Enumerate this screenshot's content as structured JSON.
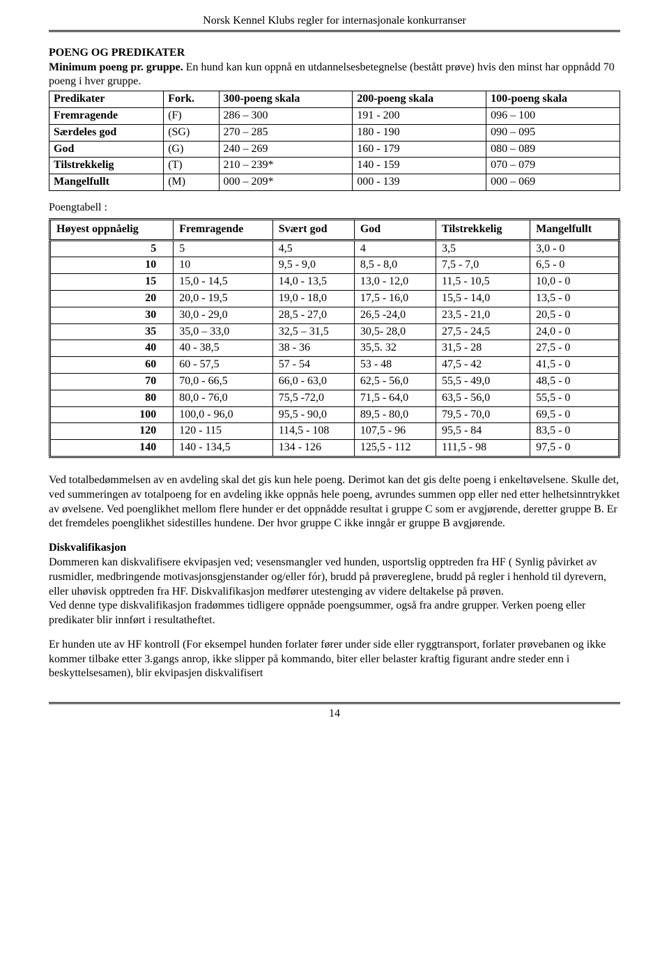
{
  "header": "Norsk Kennel Klubs regler for internasjonale konkurranser",
  "h1": "POENG OG PREDIKATER",
  "minline1": "Minimum poeng pr. gruppe.",
  "minline2": " En hund kan kun oppnå en utdannelsesbetegnelse (bestått prøve) hvis den minst har oppnådd 70 poeng i hver gruppe.",
  "tbl1": {
    "header": [
      "Predikater",
      "Fork.",
      "300-poeng skala",
      "200-poeng skala",
      "100-poeng skala"
    ],
    "rows": [
      [
        "Fremragende",
        "(F)",
        "286 – 300",
        "191 - 200",
        "096 – 100"
      ],
      [
        "Særdeles god",
        "(SG)",
        "270 – 285",
        "180 - 190",
        "090 – 095"
      ],
      [
        "God",
        "(G)",
        "240 – 269",
        "160 - 179",
        "080 – 089"
      ],
      [
        "Tilstrekkelig",
        "(T)",
        "210 – 239*",
        "140 - 159",
        "070 – 079"
      ],
      [
        "Mangelfullt",
        "(M)",
        "000 – 209*",
        "000 - 139",
        "000 – 069"
      ]
    ]
  },
  "poengtabell_label": "Poengtabell :",
  "tbl2": {
    "header": [
      "Høyest oppnåelig",
      "Fremragende",
      "Svært god",
      "God",
      "Tilstrekkelig",
      "Mangelfullt"
    ],
    "rows": [
      [
        "5",
        "5",
        "4,5",
        "4",
        "3,5",
        "3,0 - 0"
      ],
      [
        "10",
        "10",
        "9,5 -  9,0",
        "8,5 -  8,0",
        "7,5 -  7,0",
        "6,5 - 0"
      ],
      [
        "15",
        "15,0 - 14,5",
        "14,0 - 13,5",
        "13,0 - 12,0",
        "11,5 - 10,5",
        "10,0 - 0"
      ],
      [
        "20",
        "20,0 - 19,5",
        "19,0 - 18,0",
        "17,5 - 16,0",
        "15,5 - 14,0",
        "13,5 - 0"
      ],
      [
        "30",
        "30,0 - 29,0",
        "28,5 - 27,0",
        "26,5 -24,0",
        "23,5 - 21,0",
        "20,5 - 0"
      ],
      [
        "35",
        "35,0 – 33,0",
        "32,5 – 31,5",
        "30,5- 28,0",
        "27,5 - 24,5",
        "24,0 - 0"
      ],
      [
        "40",
        "40 - 38,5",
        "38 - 36",
        "35,5. 32",
        "31,5 - 28",
        "27,5 - 0"
      ],
      [
        "60",
        "60 - 57,5",
        "57 - 54",
        "53 - 48",
        "47,5 - 42",
        "41,5 - 0"
      ],
      [
        "70",
        "70,0 - 66,5",
        "66,0 - 63,0",
        "62,5 - 56,0",
        "55,5 - 49,0",
        "48,5 - 0"
      ],
      [
        "80",
        "80,0 - 76,0",
        "75,5 -72,0",
        "71,5 - 64,0",
        "63,5 - 56,0",
        "55,5 - 0"
      ],
      [
        "100",
        "100,0 - 96,0",
        "95,5 - 90,0",
        "89,5 - 80,0",
        "79,5 - 70,0",
        "69,5 - 0"
      ],
      [
        "120",
        "120 - 115",
        "114,5 - 108",
        "107,5 - 96",
        "95,5 - 84",
        "83,5 - 0"
      ],
      [
        "140",
        "140 - 134,5",
        "134 - 126",
        "125,5 - 112",
        "111,5 - 98",
        "97,5 - 0"
      ]
    ]
  },
  "para1": "Ved totalbedømmelsen av en avdeling skal det gis kun hele poeng. Derimot kan det gis delte poeng i enkeltøvelsene. Skulle det, ved summeringen av totalpoeng for en avdeling ikke oppnås hele poeng, avrundes summen opp eller ned etter helhetsinntrykket av øvelsene. Ved poenglikhet mellom flere hunder er det oppnådde resultat i gruppe C som er avgjørende, deretter gruppe B. Er det fremdeles poenglikhet sidestilles hundene. Der hvor gruppe C ikke inngår er gruppe B avgjørende.",
  "disk_title": "Diskvalifikasjon",
  "para2": "Dommeren kan diskvalifisere ekvipasjen ved; vesensmangler ved hunden, usportslig opptreden fra HF ( Synlig påvirket av rusmidler, medbringende motivasjonsgjenstander og/eller fór), brudd på prøvereglene, brudd på regler i henhold til dyrevern, eller uhøvisk opptreden fra HF. Diskvalifikasjon medfører utestenging av videre deltakelse på prøven.",
  "para3": "Ved denne type diskvalifikasjon fradømmes tidligere oppnåde poengsummer, også fra andre grupper. Verken poeng eller predikater blir innført i resultatheftet.",
  "para4": "Er hunden ute av HF kontroll (For eksempel hunden forlater fører under side eller ryggtransport, forlater prøvebanen og ikke kommer tilbake etter 3.gangs anrop, ikke slipper på kommando, biter eller belaster kraftig figurant andre steder enn i beskyttelsesamen), blir ekvipasjen diskvalifisert",
  "pagenum": "14"
}
